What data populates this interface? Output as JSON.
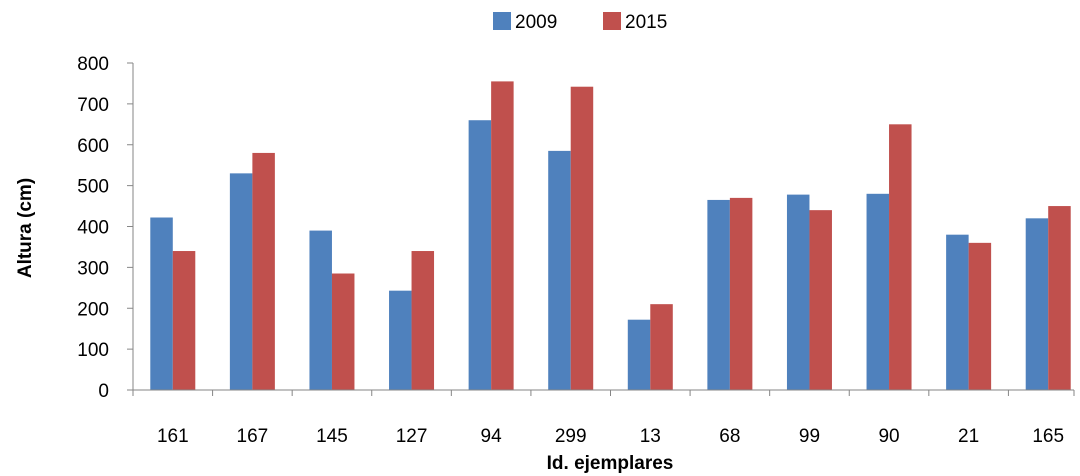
{
  "chart_data": {
    "type": "bar",
    "title": "",
    "xlabel": "Id. ejemplares",
    "ylabel": "Altura  (cm)",
    "ylim": [
      0,
      800
    ],
    "yticks": [
      "0",
      "100",
      "200",
      "300",
      "400",
      "500",
      "600",
      "700",
      "800"
    ],
    "grid": false,
    "legend_position": "top-center",
    "categories": [
      "161",
      "167",
      "145",
      "127",
      "94",
      "299",
      "13",
      "68",
      "99",
      "90",
      "21",
      "165"
    ],
    "series": [
      {
        "name": "2009",
        "color": "#4f81bd",
        "values": [
          422,
          530,
          390,
          243,
          660,
          585,
          172,
          465,
          478,
          480,
          380,
          420
        ]
      },
      {
        "name": "2015",
        "color": "#c0504d",
        "values": [
          340,
          580,
          285,
          340,
          755,
          742,
          210,
          470,
          440,
          650,
          360,
          450
        ]
      }
    ]
  }
}
